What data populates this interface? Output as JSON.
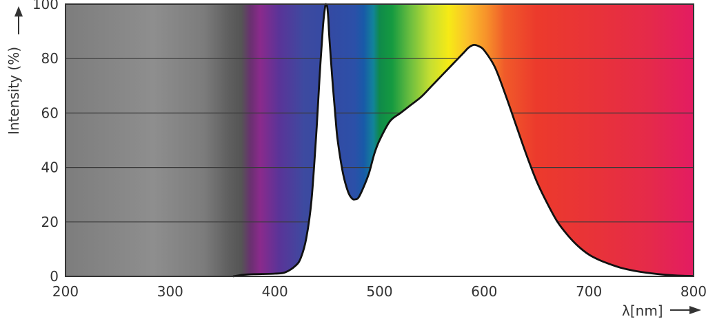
{
  "chart_data": {
    "type": "area",
    "title": "",
    "xlabel": "λ[nm]",
    "ylabel": "Intensity (%)",
    "xlim": [
      200,
      800
    ],
    "ylim": [
      0,
      100
    ],
    "x_ticks": [
      200,
      300,
      400,
      500,
      600,
      700,
      800
    ],
    "y_ticks": [
      0,
      20,
      40,
      60,
      80,
      100
    ],
    "grid": true,
    "background": "visible spectrum color gradient (grey below ~360 nm)",
    "series": [
      {
        "x": [
          360,
          365,
          370,
          380,
          400,
          410,
          420,
          425,
          430,
          435,
          440,
          443,
          446,
          448,
          449,
          450,
          451,
          452,
          455,
          458,
          460,
          465,
          470,
          474,
          477,
          480,
          485,
          490,
          495,
          500,
          510,
          520,
          530,
          540,
          550,
          560,
          570,
          580,
          585,
          590,
          595,
          600,
          610,
          620,
          630,
          640,
          650,
          660,
          670,
          680,
          690,
          700,
          710,
          720,
          730,
          740,
          750,
          760,
          770,
          780,
          790,
          800
        ],
        "values": [
          0,
          0.3,
          0.6,
          0.8,
          1,
          1.5,
          4,
          7,
          14,
          28,
          55,
          75,
          92,
          99,
          100,
          99,
          95,
          88,
          72,
          58,
          50,
          38,
          31,
          28.5,
          28.3,
          29,
          33,
          38,
          45,
          50,
          57,
          60,
          63,
          66,
          70,
          74,
          78,
          82,
          84,
          85,
          84.5,
          83,
          77,
          67,
          56,
          45,
          35,
          27,
          20,
          15,
          11,
          8,
          6,
          4.5,
          3.2,
          2.3,
          1.6,
          1.1,
          0.7,
          0.4,
          0.2,
          0.1
        ]
      }
    ]
  }
}
